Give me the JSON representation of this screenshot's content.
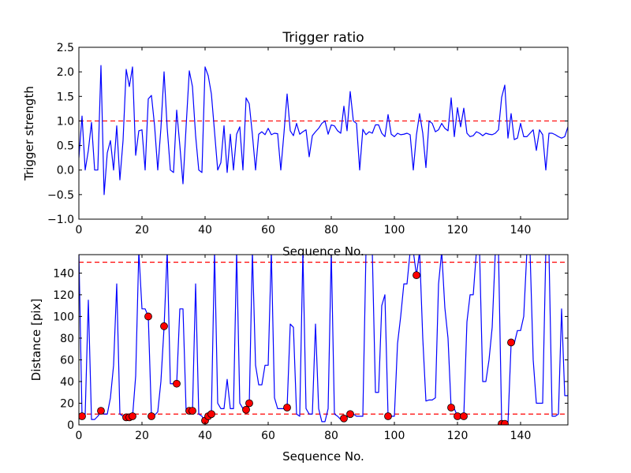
{
  "chart_data": [
    {
      "type": "line",
      "title": "Trigger ratio",
      "xlabel": "Sequence No.",
      "ylabel": "Trigger strength",
      "xlim": [
        0,
        155
      ],
      "ylim": [
        -1.0,
        2.5
      ],
      "xticks": [
        0,
        20,
        40,
        60,
        80,
        100,
        120,
        140
      ],
      "xtick_labels": [
        "0",
        "20",
        "40",
        "60",
        "80",
        "100",
        "120",
        "140"
      ],
      "yticks": [
        -1.0,
        -0.5,
        0.0,
        0.5,
        1.0,
        1.5,
        2.0,
        2.5
      ],
      "ytick_labels": [
        "−1.0",
        "−0.5",
        "0.0",
        "0.5",
        "1.0",
        "1.5",
        "2.0",
        "2.5"
      ],
      "threshold": 1.0,
      "series_color": "#0000ff",
      "threshold_color": "#ff0000",
      "x_start": 0,
      "x_step": 1,
      "values": [
        0.25,
        1.1,
        0.0,
        0.4,
        0.97,
        0.0,
        0.0,
        2.13,
        -0.5,
        0.35,
        0.6,
        0.0,
        0.9,
        -0.2,
        0.6,
        2.05,
        1.7,
        2.1,
        0.3,
        0.8,
        0.82,
        0.0,
        1.45,
        1.52,
        0.9,
        0.0,
        0.85,
        2.0,
        0.85,
        0.0,
        -0.05,
        1.22,
        0.5,
        -0.28,
        0.9,
        2.02,
        1.7,
        0.7,
        0.0,
        -0.05,
        2.1,
        1.92,
        1.55,
        0.78,
        0.0,
        0.15,
        0.9,
        -0.05,
        0.73,
        0.0,
        0.73,
        0.88,
        0.0,
        1.47,
        1.35,
        0.72,
        0.0,
        0.73,
        0.78,
        0.72,
        0.85,
        0.72,
        0.75,
        0.74,
        0.0,
        0.75,
        1.55,
        0.8,
        0.7,
        0.95,
        0.73,
        0.78,
        0.82,
        0.27,
        0.7,
        0.78,
        0.85,
        0.95,
        1.0,
        0.73,
        0.92,
        0.9,
        0.8,
        0.75,
        1.3,
        0.8,
        1.6,
        1.0,
        0.95,
        0.0,
        0.83,
        0.72,
        0.78,
        0.75,
        0.92,
        0.92,
        0.75,
        0.68,
        1.13,
        0.73,
        0.68,
        0.75,
        0.72,
        0.73,
        0.75,
        0.72,
        0.0,
        0.72,
        1.15,
        0.75,
        0.05,
        1.0,
        0.95,
        0.78,
        0.82,
        0.95,
        0.85,
        0.8,
        1.47,
        0.68,
        1.27,
        0.88,
        1.26,
        0.75,
        0.68,
        0.7,
        0.78,
        0.75,
        0.7,
        0.75,
        0.73,
        0.72,
        0.75,
        0.82,
        1.48,
        1.73,
        0.65,
        1.15,
        0.62,
        0.65,
        0.95,
        0.68,
        0.68,
        0.75,
        0.82,
        0.4,
        0.82,
        0.72,
        0.0,
        0.75,
        0.75,
        0.72,
        0.68,
        0.65,
        0.68,
        0.88,
        0.72
      ]
    },
    {
      "type": "line",
      "title": "",
      "xlabel": "Sequence No.",
      "ylabel": "Distance [pix]",
      "xlim": [
        0,
        155
      ],
      "ylim": [
        0,
        157
      ],
      "xticks": [
        0,
        20,
        40,
        60,
        80,
        100,
        120,
        140
      ],
      "xtick_labels": [
        "0",
        "20",
        "40",
        "60",
        "80",
        "100",
        "120",
        "140"
      ],
      "yticks": [
        0,
        20,
        40,
        60,
        80,
        100,
        120,
        140
      ],
      "ytick_labels": [
        "0",
        "20",
        "40",
        "60",
        "80",
        "100",
        "120",
        "140"
      ],
      "thresholds": [
        10,
        150
      ],
      "series_color": "#0000ff",
      "threshold_color": "#ff0000",
      "marker_color": "#ff0000",
      "x_start": 0,
      "x_step": 1,
      "values": [
        160,
        8,
        10,
        115,
        5,
        5,
        8,
        12,
        10,
        10,
        25,
        55,
        130,
        10,
        8,
        6,
        6,
        7,
        45,
        160,
        107,
        107,
        100,
        8,
        9,
        12,
        40,
        90,
        160,
        38,
        38,
        38,
        107,
        107,
        12,
        12,
        12,
        130,
        10,
        8,
        3,
        7,
        10,
        160,
        20,
        15,
        15,
        42,
        15,
        15,
        160,
        20,
        15,
        12,
        18,
        160,
        55,
        37,
        37,
        55,
        55,
        160,
        25,
        15,
        15,
        15,
        16,
        93,
        90,
        10,
        8,
        160,
        15,
        10,
        10,
        93,
        15,
        3,
        3,
        15,
        160,
        10,
        8,
        5,
        5,
        8,
        10,
        10,
        8,
        8,
        8,
        160,
        160,
        160,
        30,
        30,
        110,
        120,
        8,
        8,
        8,
        75,
        100,
        130,
        130,
        160,
        160,
        138,
        160,
        80,
        22,
        23,
        23,
        25,
        130,
        160,
        108,
        80,
        15,
        15,
        8,
        8,
        8,
        95,
        120,
        120,
        160,
        160,
        40,
        40,
        60,
        90,
        160,
        160,
        3,
        3,
        1,
        75,
        75,
        87,
        87,
        100,
        160,
        160,
        60,
        20,
        20,
        20,
        160,
        160,
        8,
        8,
        10,
        107,
        27,
        27,
        160
      ],
      "markers": [
        {
          "x": 1,
          "y": 8
        },
        {
          "x": 7,
          "y": 13
        },
        {
          "x": 15,
          "y": 7
        },
        {
          "x": 16,
          "y": 7
        },
        {
          "x": 17,
          "y": 8
        },
        {
          "x": 22,
          "y": 100
        },
        {
          "x": 23,
          "y": 8
        },
        {
          "x": 27,
          "y": 91
        },
        {
          "x": 31,
          "y": 38
        },
        {
          "x": 35,
          "y": 13
        },
        {
          "x": 36,
          "y": 13
        },
        {
          "x": 40,
          "y": 4
        },
        {
          "x": 41,
          "y": 8
        },
        {
          "x": 42,
          "y": 10
        },
        {
          "x": 53,
          "y": 14
        },
        {
          "x": 54,
          "y": 20
        },
        {
          "x": 66,
          "y": 16
        },
        {
          "x": 84,
          "y": 6
        },
        {
          "x": 86,
          "y": 10
        },
        {
          "x": 98,
          "y": 8
        },
        {
          "x": 107,
          "y": 138
        },
        {
          "x": 118,
          "y": 16
        },
        {
          "x": 120,
          "y": 8
        },
        {
          "x": 122,
          "y": 8
        },
        {
          "x": 134,
          "y": 1
        },
        {
          "x": 135,
          "y": 1
        },
        {
          "x": 137,
          "y": 76
        }
      ]
    }
  ]
}
